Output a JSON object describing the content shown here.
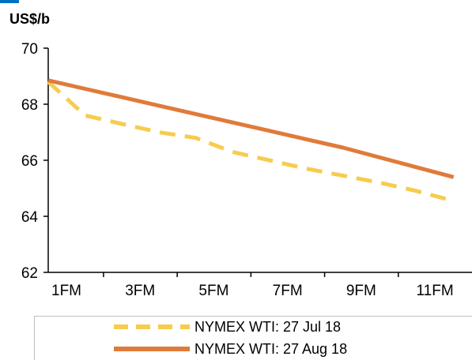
{
  "unit_label": "US$/b",
  "colors": {
    "accent": "#0070c0",
    "series1": "#f7cc4d",
    "series2": "#e07b3a",
    "axis": "#000000"
  },
  "chart_data": {
    "type": "line",
    "title": "",
    "ylabel": "US$/b",
    "xlabel": "",
    "ylim": [
      62,
      70
    ],
    "yticks": [
      62,
      64,
      66,
      68,
      70
    ],
    "x": [
      "1FM",
      "2FM",
      "3FM",
      "4FM",
      "5FM",
      "6FM",
      "7FM",
      "8FM",
      "9FM",
      "10FM",
      "11FM",
      "12FM"
    ],
    "xtick_labels": [
      "1FM",
      "3FM",
      "5FM",
      "7FM",
      "9FM",
      "11FM"
    ],
    "grid": false,
    "legend_position": "bottom",
    "series": [
      {
        "name": "NYMEX WTI: 27 Jul 18",
        "style": "dashed",
        "color": "#f7cc4d",
        "values": [
          68.8,
          67.6,
          67.3,
          67.0,
          66.8,
          66.3,
          66.0,
          65.7,
          65.45,
          65.2,
          64.9,
          64.55
        ]
      },
      {
        "name": "NYMEX WTI: 27 Aug 18",
        "style": "solid",
        "color": "#e07b3a",
        "values": [
          68.85,
          68.55,
          68.25,
          67.95,
          67.65,
          67.35,
          67.05,
          66.75,
          66.45,
          66.1,
          65.75,
          65.4
        ]
      }
    ]
  }
}
